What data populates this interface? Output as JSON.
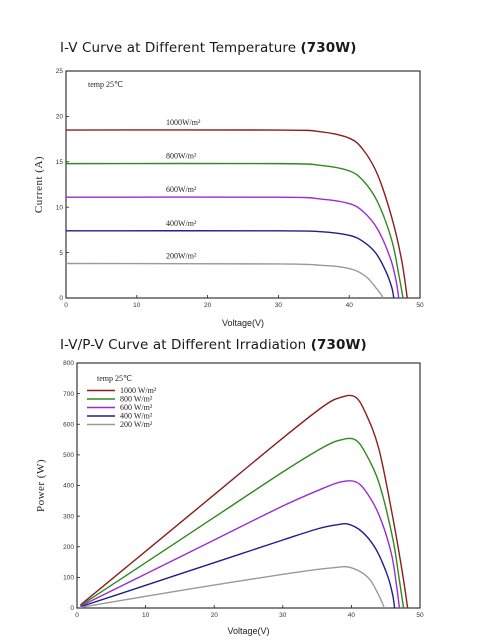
{
  "charts": {
    "iv": {
      "title_main": "I-V Curve at Different Temperature ",
      "title_bold": "(730W)"
    },
    "pv": {
      "title_main": "I-V/P-V Curve at Different Irradiation ",
      "title_bold": "(730W)"
    }
  },
  "chart_data": [
    {
      "type": "line",
      "title": "I-V Curve at Different Temperature (730W)",
      "xlabel": "Voltage(V)",
      "ylabel": "Current (A)",
      "xlim": [
        0,
        50
      ],
      "ylim": [
        0,
        25
      ],
      "xticks": [
        0,
        10,
        20,
        30,
        40,
        50
      ],
      "yticks": [
        0,
        5,
        10,
        15,
        20,
        25
      ],
      "annotation": "temp  25℃",
      "grid": false,
      "series": [
        {
          "name": "1000W/m²",
          "color": "#8b1e1e",
          "isc": 18.5,
          "voc": 48.2,
          "knee": 43.5,
          "points": [
            [
              0,
              18.5
            ],
            [
              30,
              18.5
            ],
            [
              36,
              18.3
            ],
            [
              40,
              17.6
            ],
            [
              42,
              16.3
            ],
            [
              44,
              13.6
            ],
            [
              46,
              8.9
            ],
            [
              47.4,
              4.2
            ],
            [
              48.2,
              0
            ]
          ]
        },
        {
          "name": "800W/m²",
          "color": "#2e8b1e",
          "isc": 14.8,
          "voc": 47.6,
          "knee": 43.0,
          "points": [
            [
              0,
              14.8
            ],
            [
              30,
              14.8
            ],
            [
              36,
              14.6
            ],
            [
              40,
              14.0
            ],
            [
              42,
              12.9
            ],
            [
              44,
              10.6
            ],
            [
              46,
              6.4
            ],
            [
              47.0,
              2.6
            ],
            [
              47.6,
              0
            ]
          ]
        },
        {
          "name": "600W/m²",
          "color": "#9b2bd6",
          "isc": 11.1,
          "voc": 47.0,
          "knee": 42.5,
          "points": [
            [
              0,
              11.1
            ],
            [
              30,
              11.1
            ],
            [
              36,
              10.9
            ],
            [
              40,
              10.4
            ],
            [
              42,
              9.5
            ],
            [
              44,
              7.6
            ],
            [
              45.8,
              4.4
            ],
            [
              46.6,
              2.0
            ],
            [
              47.0,
              0
            ]
          ]
        },
        {
          "name": "400W/m²",
          "color": "#1f1f8c",
          "isc": 7.4,
          "voc": 46.3,
          "knee": 41.5,
          "points": [
            [
              0,
              7.4
            ],
            [
              30,
              7.4
            ],
            [
              36,
              7.3
            ],
            [
              40,
              6.9
            ],
            [
              42,
              6.2
            ],
            [
              43.8,
              4.9
            ],
            [
              45.2,
              2.9
            ],
            [
              46.0,
              1.2
            ],
            [
              46.3,
              0
            ]
          ]
        },
        {
          "name": "200W/m²",
          "color": "#9a9a9a",
          "isc": 3.8,
          "voc": 44.8,
          "knee": 40.5,
          "points": [
            [
              0,
              3.8
            ],
            [
              30,
              3.75
            ],
            [
              36,
              3.6
            ],
            [
              39,
              3.4
            ],
            [
              41,
              3.0
            ],
            [
              42.6,
              2.2
            ],
            [
              43.8,
              1.1
            ],
            [
              44.4,
              0.5
            ],
            [
              44.8,
              0
            ]
          ]
        }
      ]
    },
    {
      "type": "line",
      "title": "I-V/P-V Curve at Different Irradiation (730W)",
      "xlabel": "Voltage(V)",
      "ylabel": "Power (W)",
      "xlim": [
        0,
        50
      ],
      "ylim": [
        0,
        800
      ],
      "xticks": [
        0,
        10,
        20,
        30,
        40,
        50
      ],
      "yticks": [
        0,
        100,
        200,
        300,
        400,
        500,
        600,
        700,
        800
      ],
      "annotation": "temp  25℃",
      "legend_position": "top-left",
      "grid": false,
      "series": [
        {
          "name": "1000  W/m²",
          "color": "#8b1e1e",
          "points": [
            [
              0.5,
              10
            ],
            [
              10,
              185
            ],
            [
              20,
              370
            ],
            [
              30,
              555
            ],
            [
              36,
              660
            ],
            [
              38.5,
              688
            ],
            [
              40.5,
              690
            ],
            [
              42,
              640
            ],
            [
              44,
              520
            ],
            [
              46,
              300
            ],
            [
              47.4,
              120
            ],
            [
              48.2,
              0
            ]
          ]
        },
        {
          "name": "800  W/m²",
          "color": "#2e8b1e",
          "points": [
            [
              0.5,
              8
            ],
            [
              10,
              148
            ],
            [
              20,
              296
            ],
            [
              30,
              444
            ],
            [
              36,
              526
            ],
            [
              38.5,
              549
            ],
            [
              40.5,
              550
            ],
            [
              42,
              508
            ],
            [
              44,
              410
            ],
            [
              46,
              230
            ],
            [
              47.0,
              90
            ],
            [
              47.6,
              0
            ]
          ]
        },
        {
          "name": "600  W/m²",
          "color": "#9b2bd6",
          "points": [
            [
              0.5,
              6
            ],
            [
              10,
              111
            ],
            [
              20,
              222
            ],
            [
              30,
              333
            ],
            [
              36,
              392
            ],
            [
              38.5,
              412
            ],
            [
              40.5,
              413
            ],
            [
              42,
              384
            ],
            [
              44,
              305
            ],
            [
              45.8,
              180
            ],
            [
              46.6,
              70
            ],
            [
              47.0,
              0
            ]
          ]
        },
        {
          "name": "400  W/m²",
          "color": "#1f1f8c",
          "points": [
            [
              0.5,
              4
            ],
            [
              10,
              74
            ],
            [
              20,
              148
            ],
            [
              30,
              222
            ],
            [
              35,
              258
            ],
            [
              38,
              272
            ],
            [
              39.5,
              274
            ],
            [
              41.5,
              250
            ],
            [
              43.5,
              195
            ],
            [
              45.2,
              110
            ],
            [
              46.0,
              45
            ],
            [
              46.3,
              0
            ]
          ]
        },
        {
          "name": "200  W/m²",
          "color": "#9a9a9a",
          "points": [
            [
              0.5,
              2
            ],
            [
              10,
              38
            ],
            [
              20,
              75
            ],
            [
              30,
              110
            ],
            [
              35,
              126
            ],
            [
              38,
              133
            ],
            [
              39.5,
              134
            ],
            [
              41.5,
              116
            ],
            [
              42.8,
              90
            ],
            [
              43.8,
              50
            ],
            [
              44.4,
              22
            ],
            [
              44.8,
              0
            ]
          ]
        }
      ]
    }
  ]
}
